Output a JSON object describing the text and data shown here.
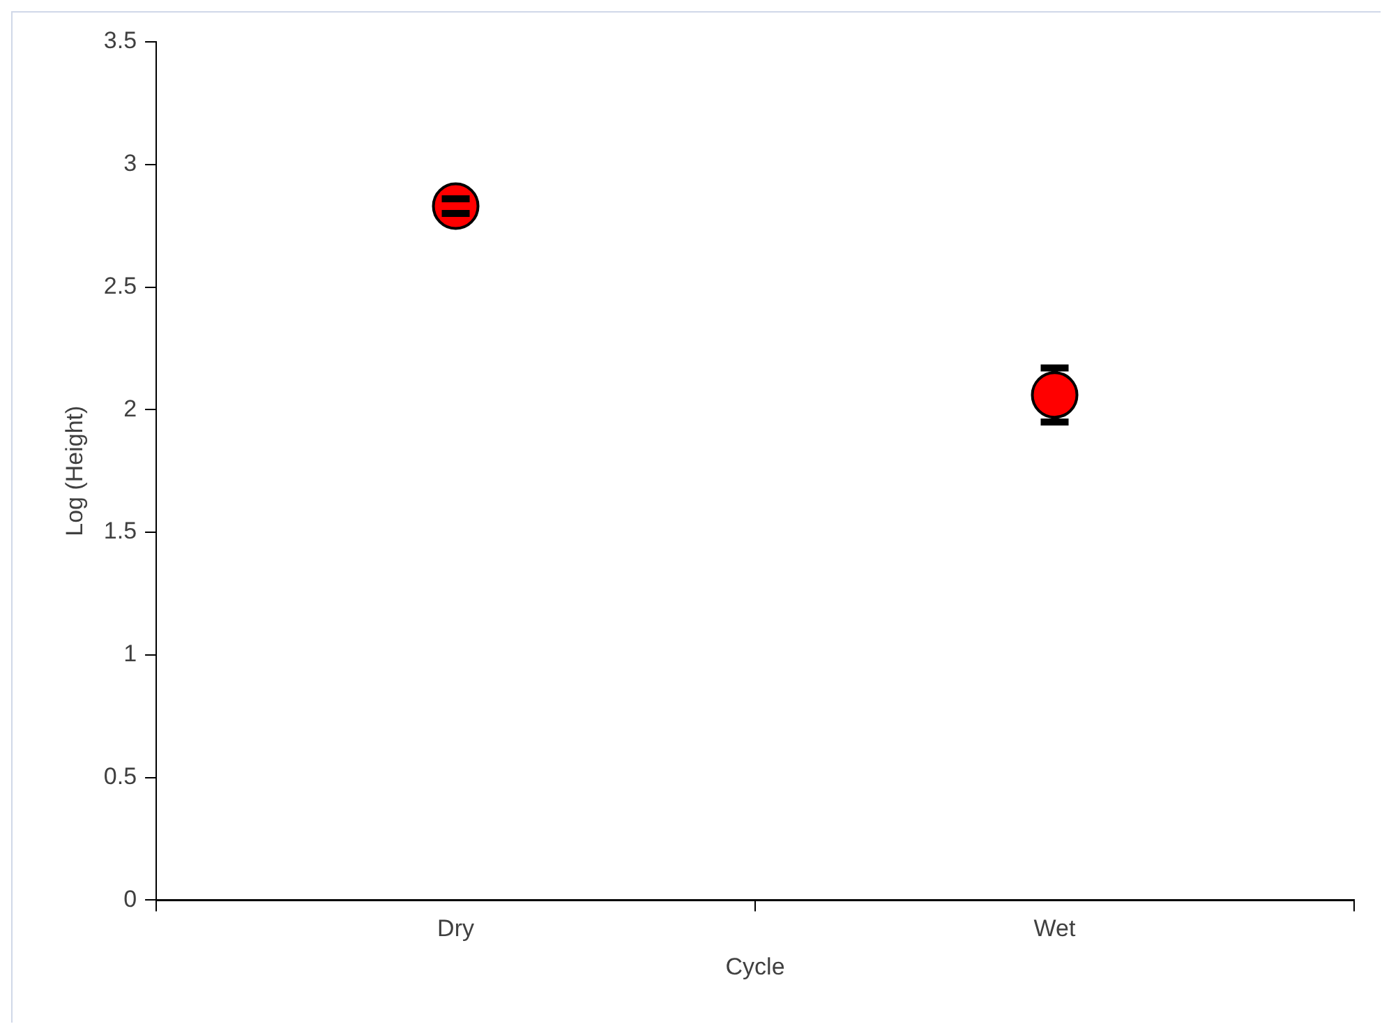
{
  "chart_data": {
    "type": "scatter",
    "xlabel": "Cycle",
    "ylabel": "Log (Height)",
    "categories": [
      "Dry",
      "Wet"
    ],
    "series": [
      {
        "color": "#ff0000",
        "values": [
          2.83,
          2.06
        ],
        "errors": [
          0.03,
          0.11
        ]
      }
    ],
    "ylim": [
      0,
      3.5
    ],
    "yticks": [
      0,
      0.5,
      1,
      1.5,
      2,
      2.5,
      3,
      3.5
    ],
    "grid": false,
    "legend": false,
    "marker": "circle"
  }
}
